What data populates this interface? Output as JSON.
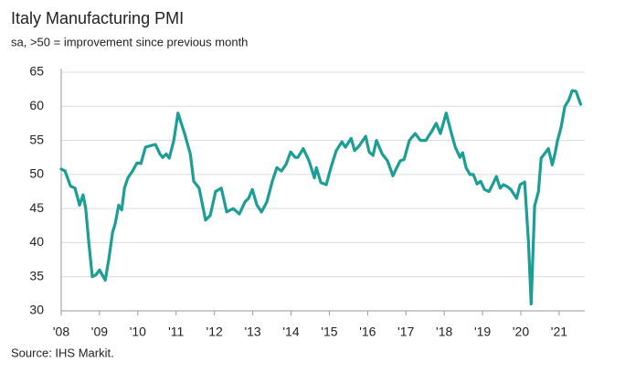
{
  "chart_data": {
    "type": "line",
    "title": "Italy Manufacturing PMI",
    "subtitle": "sa, >50 = improvement since previous month",
    "source": "Source: IHS Markit.",
    "series": [
      {
        "name": "Italy Manufacturing PMI",
        "color": "#1b9e94",
        "x": [
          2008.0,
          2008.1,
          2008.24,
          2008.36,
          2008.48,
          2008.57,
          2008.64,
          2008.72,
          2008.81,
          2008.91,
          2009.0,
          2009.15,
          2009.24,
          2009.34,
          2009.41,
          2009.5,
          2009.58,
          2009.65,
          2009.74,
          2009.86,
          2009.98,
          2010.08,
          2010.2,
          2010.32,
          2010.46,
          2010.58,
          2010.65,
          2010.74,
          2010.82,
          2010.94,
          2011.05,
          2011.22,
          2011.37,
          2011.46,
          2011.6,
          2011.77,
          2011.89,
          2012.03,
          2012.18,
          2012.32,
          2012.49,
          2012.65,
          2012.8,
          2012.89,
          2012.99,
          2013.11,
          2013.23,
          2013.37,
          2013.51,
          2013.63,
          2013.75,
          2013.87,
          2013.99,
          2014.11,
          2014.18,
          2014.32,
          2014.47,
          2014.61,
          2014.66,
          2014.78,
          2014.92,
          2015.04,
          2015.18,
          2015.33,
          2015.42,
          2015.57,
          2015.66,
          2015.78,
          2015.95,
          2016.04,
          2016.14,
          2016.23,
          2016.38,
          2016.52,
          2016.66,
          2016.76,
          2016.85,
          2016.95,
          2017.09,
          2017.24,
          2017.38,
          2017.52,
          2017.67,
          2017.79,
          2017.9,
          2018.05,
          2018.19,
          2018.29,
          2018.41,
          2018.48,
          2018.57,
          2018.67,
          2018.76,
          2018.86,
          2018.95,
          2019.05,
          2019.17,
          2019.26,
          2019.36,
          2019.46,
          2019.55,
          2019.65,
          2019.74,
          2019.89,
          2019.98,
          2020.1,
          2020.2,
          2020.27,
          2020.36,
          2020.46,
          2020.53,
          2020.63,
          2020.72,
          2020.82,
          2020.89,
          2020.96,
          2021.05,
          2021.15,
          2021.25,
          2021.34,
          2021.44,
          2021.56
        ],
        "values": [
          50.8,
          50.5,
          48.3,
          48.0,
          45.5,
          47.0,
          45.0,
          40.0,
          35.0,
          35.3,
          36.0,
          34.5,
          37.5,
          41.5,
          42.8,
          45.5,
          44.8,
          48.0,
          49.5,
          50.5,
          51.7,
          51.6,
          54.0,
          54.2,
          54.4,
          53.0,
          52.5,
          53.0,
          52.4,
          55.0,
          59.0,
          56.0,
          53.0,
          49.0,
          48.0,
          43.3,
          44.0,
          47.5,
          48.0,
          44.5,
          45.0,
          44.2,
          46.0,
          46.5,
          47.8,
          45.5,
          44.5,
          46.0,
          49.0,
          51.0,
          50.5,
          51.5,
          53.3,
          52.5,
          52.5,
          53.8,
          52.0,
          49.5,
          51.0,
          48.8,
          48.5,
          51.0,
          53.5,
          54.8,
          54.0,
          55.3,
          53.5,
          54.2,
          55.6,
          53.3,
          52.8,
          55.0,
          53.0,
          52.0,
          49.8,
          51.0,
          52.0,
          52.2,
          55.0,
          56.0,
          55.0,
          55.0,
          56.3,
          57.5,
          56.0,
          59.0,
          56.0,
          54.0,
          52.5,
          53.2,
          51.0,
          50.0,
          50.0,
          48.6,
          49.0,
          47.8,
          47.5,
          48.5,
          49.7,
          48.0,
          48.5,
          48.2,
          47.8,
          46.5,
          48.5,
          48.9,
          40.0,
          31.0,
          45.4,
          47.5,
          52.4,
          53.1,
          53.8,
          51.4,
          53.0,
          55.0,
          56.9,
          60.0,
          60.9,
          62.3,
          62.2,
          60.3
        ]
      }
    ],
    "xlim": [
      2008,
      2021.67
    ],
    "xticks": [
      {
        "value": 2008,
        "label": "'08"
      },
      {
        "value": 2009,
        "label": "'09"
      },
      {
        "value": 2010,
        "label": "'10"
      },
      {
        "value": 2011,
        "label": "'11"
      },
      {
        "value": 2012,
        "label": "'12"
      },
      {
        "value": 2013,
        "label": "'13"
      },
      {
        "value": 2014,
        "label": "'14"
      },
      {
        "value": 2015,
        "label": "'15"
      },
      {
        "value": 2016,
        "label": "'16"
      },
      {
        "value": 2017,
        "label": "'17"
      },
      {
        "value": 2018,
        "label": "'18"
      },
      {
        "value": 2019,
        "label": "'19"
      },
      {
        "value": 2020,
        "label": "'20"
      },
      {
        "value": 2021,
        "label": "'21"
      }
    ],
    "ylim": [
      30,
      65
    ],
    "yticks": [
      30,
      35,
      40,
      45,
      50,
      55,
      60,
      65
    ],
    "grid": true
  }
}
